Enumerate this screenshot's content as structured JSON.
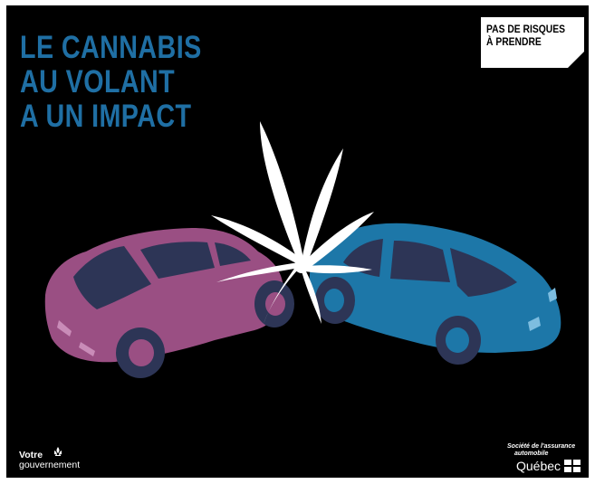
{
  "headline": {
    "line1": "LE CANNABIS",
    "line2": "AU VOLANT",
    "line3": "A UN IMPACT"
  },
  "tag": {
    "line1": "PAS DE RISQUES",
    "line2": "À PRENDRE"
  },
  "footer_left": {
    "line1": "Votre",
    "line2": "gouvernement"
  },
  "footer_right": {
    "agency_line1": "Société de l'assurance",
    "agency_line2": "automobile",
    "province": "Québec"
  },
  "colors": {
    "background": "#000000",
    "headline": "#1f6fa4",
    "car_left": "#9a4f83",
    "car_right": "#1d77a8",
    "windows": "#2d3556",
    "leaf": "#ffffff"
  },
  "icons": [
    "cannabis-leaf-icon",
    "fleur-de-lis-icon",
    "quebec-flag-icon"
  ]
}
